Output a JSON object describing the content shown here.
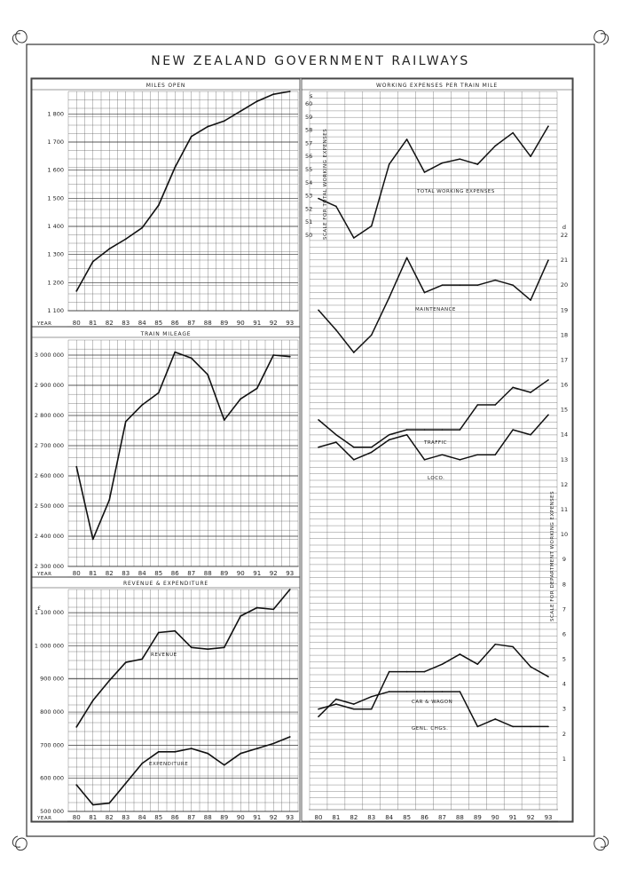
{
  "page_title": "NEW ZEALAND GOVERNMENT RAILWAYS",
  "year_label": "YEAR",
  "chart_data": [
    {
      "type": "line",
      "title": "MILES OPEN",
      "x": [
        "80",
        "81",
        "82",
        "83",
        "84",
        "85",
        "86",
        "87",
        "88",
        "89",
        "90",
        "91",
        "92",
        "93"
      ],
      "y_ticks": [
        "1 800",
        "1 700",
        "1 600",
        "1 500",
        "1 400",
        "1 300",
        "1 200",
        "1 100"
      ],
      "ylim": [
        1100,
        1880
      ],
      "grid": true,
      "series": [
        {
          "values": [
            1170,
            1275,
            1320,
            1355,
            1395,
            1475,
            1610,
            1720,
            1755,
            1775,
            1810,
            1845,
            1870,
            1880
          ]
        }
      ]
    },
    {
      "type": "line",
      "title": "TRAIN MILEAGE",
      "x": [
        "80",
        "81",
        "82",
        "83",
        "84",
        "85",
        "86",
        "87",
        "88",
        "89",
        "90",
        "91",
        "92",
        "93"
      ],
      "y_ticks": [
        "3 000 000",
        "2 900 000",
        "2 800 000",
        "2 700 000",
        "2 600 000",
        "2 500 000",
        "2 400 000",
        "2 300 000"
      ],
      "ylim": [
        2300000,
        3050000
      ],
      "grid": true,
      "series": [
        {
          "values": [
            2630000,
            2390000,
            2520000,
            2780000,
            2835000,
            2875000,
            3010000,
            2990000,
            2935000,
            2785000,
            2855000,
            2890000,
            3000000,
            2995000
          ]
        }
      ]
    },
    {
      "type": "line",
      "title": "REVENUE & EXPENDITURE",
      "currency_label": "£",
      "x": [
        "80",
        "81",
        "82",
        "83",
        "84",
        "85",
        "86",
        "87",
        "88",
        "89",
        "90",
        "91",
        "92",
        "93"
      ],
      "y_ticks": [
        "1 100 000",
        "1 000 000",
        "900 000",
        "800 000",
        "700 000",
        "600 000",
        "500 000"
      ],
      "ylim": [
        500000,
        1170000
      ],
      "grid": true,
      "series": [
        {
          "name": "REVENUE",
          "values": [
            755000,
            835000,
            895000,
            950000,
            960000,
            1040000,
            1045000,
            995000,
            990000,
            995000,
            1090000,
            1115000,
            1110000,
            1170000
          ]
        },
        {
          "name": "EXPENDITURE",
          "values": [
            580000,
            520000,
            525000,
            585000,
            645000,
            680000,
            680000,
            690000,
            675000,
            640000,
            675000,
            690000,
            705000,
            725000
          ]
        }
      ]
    },
    {
      "type": "line",
      "title": "WORKING EXPENSES PER TRAIN MILE",
      "x": [
        "80",
        "81",
        "82",
        "83",
        "84",
        "85",
        "86",
        "87",
        "88",
        "89",
        "90",
        "91",
        "92",
        "93"
      ],
      "unit_left": "s",
      "unit_right": "d",
      "left_axis_label": "SCALE FOR TOTAL WORKING EXPENSES",
      "right_axis_label": "SCALE FOR DEPARTMENT WORKING EXPENSES",
      "left_ticks": [
        "60",
        "59",
        "58",
        "57",
        "56",
        "55",
        "54",
        "53",
        "52",
        "51",
        "50"
      ],
      "right_ticks": [
        "22",
        "21",
        "20",
        "19",
        "18",
        "17",
        "16",
        "15",
        "14",
        "13",
        "12",
        "11",
        "10",
        "9",
        "8",
        "7",
        "6",
        "5",
        "4",
        "3",
        "2",
        "1"
      ],
      "left_ylim": [
        50,
        60
      ],
      "right_ylim": [
        0,
        22
      ],
      "grid": true,
      "series": [
        {
          "name": "TOTAL WORKING EXPENSES",
          "axis": "left",
          "values": [
            52.8,
            52.2,
            49.8,
            50.7,
            55.4,
            57.3,
            54.8,
            55.5,
            55.8,
            55.4,
            56.8,
            57.8,
            56.0,
            58.3
          ]
        },
        {
          "name": "MAINTENANCE",
          "axis": "right",
          "values": [
            19.0,
            18.2,
            17.3,
            18.0,
            19.5,
            21.1,
            19.7,
            20.0,
            20.0,
            20.0,
            20.2,
            20.0,
            19.4,
            21.0
          ]
        },
        {
          "name": "TRAFFIC",
          "axis": "right",
          "values": [
            14.6,
            14.0,
            13.5,
            13.5,
            14.0,
            14.2,
            14.2,
            14.2,
            14.2,
            15.2,
            15.2,
            15.9,
            15.7,
            16.2
          ]
        },
        {
          "name": "LOCO.",
          "axis": "right",
          "values": [
            13.5,
            13.7,
            13.0,
            13.3,
            13.8,
            14.0,
            13.0,
            13.2,
            13.0,
            13.2,
            13.2,
            14.2,
            14.0,
            14.8
          ]
        },
        {
          "name": "CAR & WAGON",
          "axis": "right",
          "values": [
            3.0,
            3.2,
            3.0,
            3.0,
            4.5,
            4.5,
            4.5,
            4.8,
            5.2,
            4.8,
            5.6,
            5.5,
            4.7,
            4.3
          ]
        },
        {
          "name": "GENL. CHGS.",
          "axis": "right",
          "values": [
            2.7,
            3.4,
            3.2,
            3.5,
            3.7,
            3.7,
            3.7,
            3.7,
            3.7,
            2.3,
            2.6,
            2.3,
            2.3,
            2.3
          ]
        }
      ]
    }
  ]
}
